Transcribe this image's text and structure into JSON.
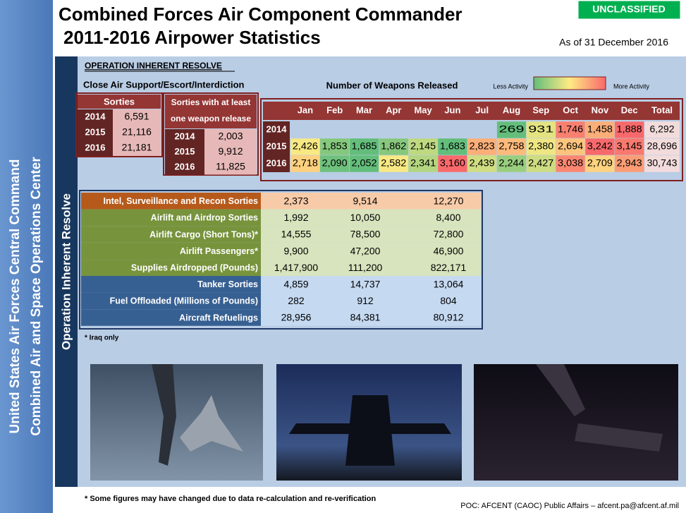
{
  "header": {
    "title_line1": "Combined Forces Air Component Commander",
    "title_line2": "2011-2016 Airpower Statistics",
    "classification": "UNCLASSIFIED",
    "as_of": "As of 31 December 2016"
  },
  "sidebar": {
    "line1": "United States Air Forces Central Command",
    "line2": "Combined Air and Space Operations Center"
  },
  "section": {
    "title": "OPERATION INHERENT RESOLVE",
    "vertical_label": "Operation Inherent Resolve",
    "cas_title": "Close Air Support/Escort/Interdiction"
  },
  "sorties": {
    "title": "Sorties",
    "rows": [
      [
        "2014",
        "6,591"
      ],
      [
        "2015",
        "21,116"
      ],
      [
        "2016",
        "21,181"
      ]
    ]
  },
  "weapon_sorties": {
    "title_line1": "Sorties with at least",
    "title_line2": "one weapon release",
    "rows": [
      [
        "2014",
        "2,003"
      ],
      [
        "2015",
        "9,912"
      ],
      [
        "2016",
        "11,825"
      ]
    ]
  },
  "weapons": {
    "title": "Number of Weapons Released",
    "legend_low": "Less Activity",
    "legend_high": "More Activity",
    "columns": [
      "Jan",
      "Feb",
      "Mar",
      "Apr",
      "May",
      "Jun",
      "Jul",
      "Aug",
      "Sep",
      "Oct",
      "Nov",
      "Dec"
    ],
    "total_label": "Total",
    "rows": [
      {
        "year": "2014",
        "values": [
          null,
          null,
          null,
          null,
          null,
          null,
          null,
          "269",
          "931",
          "1,746",
          "1,458",
          "1,888"
        ],
        "total": "6,292"
      },
      {
        "year": "2015",
        "values": [
          "2,426",
          "1,853",
          "1,685",
          "1,862",
          "2,145",
          "1,683",
          "2,823",
          "2,758",
          "2,380",
          "2,694",
          "3,242",
          "3,145"
        ],
        "total": "28,696"
      },
      {
        "year": "2016",
        "values": [
          "2,718",
          "2,090",
          "2,052",
          "2,582",
          "2,341",
          "3,160",
          "2,439",
          "2,244",
          "2,427",
          "3,038",
          "2,709",
          "2,943"
        ],
        "total": "30,743"
      }
    ]
  },
  "stats": {
    "rows": [
      {
        "label": "Intel, Surveillance and Recon Sorties",
        "values": [
          "2,373",
          "9,514",
          "12,270"
        ]
      },
      {
        "label": "Airlift and Airdrop Sorties",
        "values": [
          "1,992",
          "10,050",
          "8,400"
        ]
      },
      {
        "label": "Airlift Cargo (Short Tons)*",
        "values": [
          "14,555",
          "78,500",
          "72,800"
        ]
      },
      {
        "label": "Airlift Passengers*",
        "values": [
          "9,900",
          "47,200",
          "46,900"
        ]
      },
      {
        "label": "Supplies Airdropped (Pounds)",
        "values": [
          "1,417,900",
          "111,200",
          "822,171"
        ]
      },
      {
        "label": "Tanker Sorties",
        "values": [
          "4,859",
          "14,737",
          "13,064"
        ]
      },
      {
        "label": "Fuel Offloaded (Millions of Pounds)",
        "values": [
          "282",
          "912",
          "804"
        ]
      },
      {
        "label": "Aircraft Refuelings",
        "values": [
          "28,956",
          "84,381",
          "80,912"
        ]
      }
    ],
    "footnote": "* Iraq only"
  },
  "footer": {
    "note": "* Some figures may have changed due to data re-calculation and re-verification",
    "poc": "POC:  AFCENT (CAOC) Public Affairs – afcent.pa@afcent.af.mil"
  }
}
